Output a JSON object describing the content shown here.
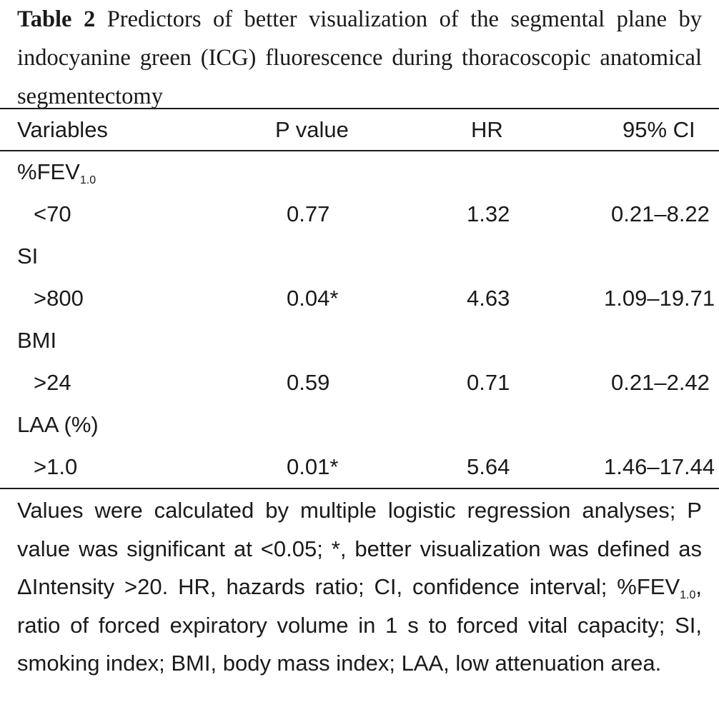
{
  "caption": {
    "label": "Table 2",
    "text": "Predictors of better visualization of the segmental plane by indocyanine green (ICG) fluorescence during thoracoscopic anatomical segmentectomy"
  },
  "table": {
    "headers": {
      "variables": "Variables",
      "p_value": "P value",
      "hr": "HR",
      "ci": "95% CI"
    },
    "groups": [
      {
        "name": "%FEV",
        "name_sub": "1.0",
        "row": {
          "level": "<70",
          "p": "0.77",
          "hr": "1.32",
          "ci": "0.21–8.22"
        }
      },
      {
        "name": "SI",
        "row": {
          "level": ">800",
          "p": "0.04*",
          "hr": "4.63",
          "ci": "1.09–19.71"
        }
      },
      {
        "name": "BMI",
        "row": {
          "level": ">24",
          "p": "0.59",
          "hr": "0.71",
          "ci": "0.21–2.42"
        }
      },
      {
        "name": "LAA (%)",
        "row": {
          "level": ">1.0",
          "p": "0.01*",
          "hr": "5.64",
          "ci": "1.46–17.44"
        }
      }
    ]
  },
  "footnote": {
    "part1": "Values were calculated by multiple logistic regression analyses; P value was significant at <0.05; *, better visualization was defined as ΔIntensity >20. HR, hazards ratio; CI, confidence interval; %FEV",
    "sub": "1.0",
    "part2": ", ratio of forced expiratory volume in 1 s to forced vital capacity; SI, smoking index; BMI, body mass index; LAA, low attenuation area."
  }
}
